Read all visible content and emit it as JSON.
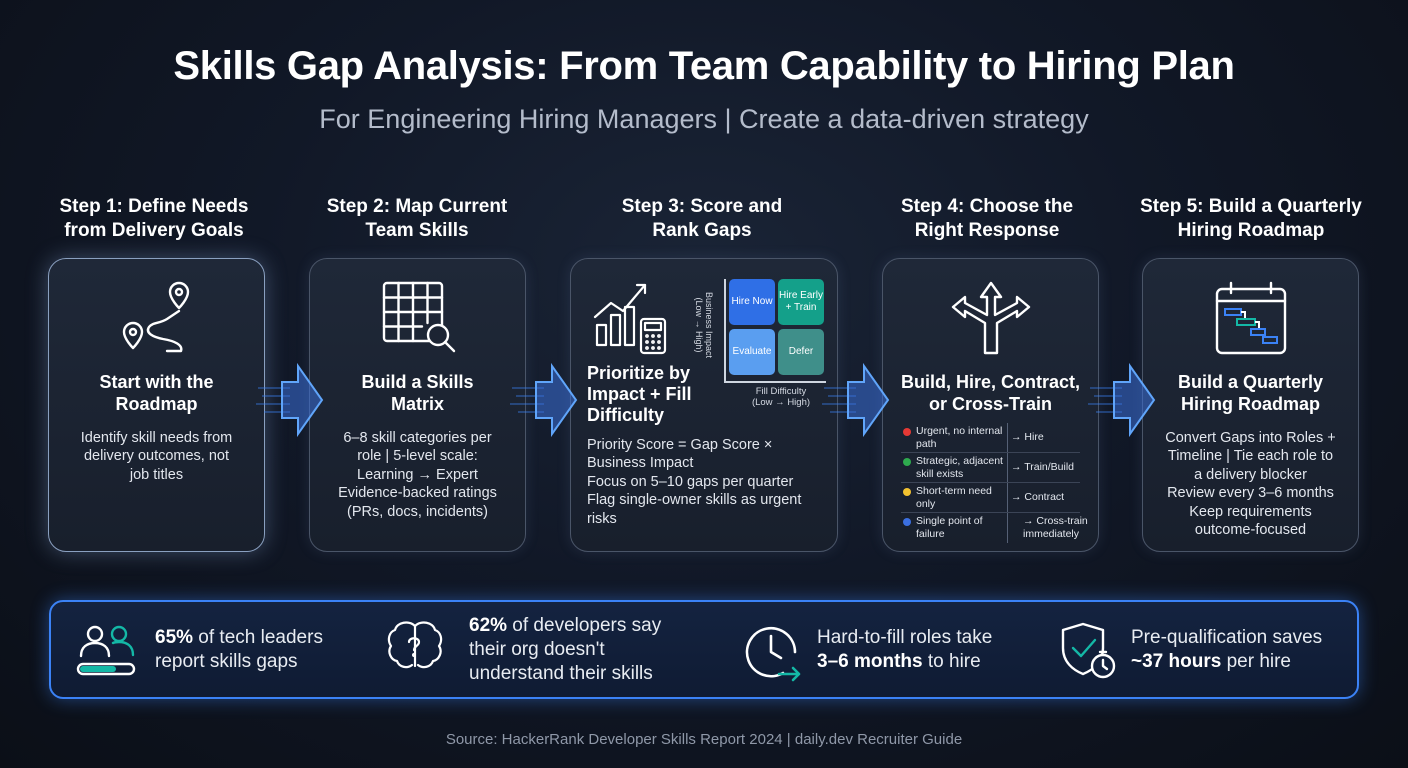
{
  "header": {
    "title": "Skills Gap Analysis: From Team Capability to Hiring Plan",
    "subtitle": "For Engineering Hiring Managers | Create a data-driven strategy"
  },
  "steps": [
    {
      "heading": [
        "Step 1: Define Needs",
        "from Delivery Goals"
      ],
      "title": [
        "Start with the",
        "Roadmap"
      ],
      "body": [
        "Identify skill needs from",
        "delivery outcomes, not",
        "job titles"
      ],
      "icon": "route-pins-icon"
    },
    {
      "heading": [
        "Step 2: Map Current",
        "Team Skills"
      ],
      "title": [
        "Build a Skills",
        "Matrix"
      ],
      "body": [
        "6–8 skill categories per",
        "role | 5-level scale:",
        "Learning → Expert",
        "Evidence-backed ratings",
        "(PRs, docs, incidents)"
      ],
      "icon": "grid-search-icon"
    },
    {
      "heading": [
        "Step 3: Score and",
        "Rank Gaps"
      ],
      "title": [
        "Prioritize by",
        "Impact + Fill",
        "Difficulty"
      ],
      "body": [
        "Priority Score = Gap Score ×",
        "Business Impact",
        "Focus on 5–10 gaps per quarter",
        "Flag single-owner skills as urgent",
        "risks"
      ],
      "icon": "chart-calculator-icon",
      "matrix": {
        "y_axis": [
          "Business Impact",
          "(Low → High)"
        ],
        "x_axis": [
          "Fill Difficulty",
          "(Low → High)"
        ],
        "cells": [
          {
            "label": "Hire Now",
            "color": "#2f6fe6"
          },
          {
            "label": "Hire Early + Train",
            "color": "#14a08a"
          },
          {
            "label": "Evaluate",
            "color": "#5a9ef0"
          },
          {
            "label": "Defer",
            "color": "#3f8f8a"
          }
        ]
      }
    },
    {
      "heading": [
        "Step 4: Choose the",
        "Right Response"
      ],
      "title": [
        "Build, Hire, Contract,",
        "or Cross-Train"
      ],
      "icon": "split-arrows-icon",
      "responses": [
        {
          "condition": [
            "Urgent, no internal",
            "path"
          ],
          "action": [
            "→ Hire"
          ],
          "color": "#e53935"
        },
        {
          "condition": [
            "Strategic, adjacent",
            "skill exists"
          ],
          "action": [
            "→ Train/Build"
          ],
          "color": "#2eaa4e"
        },
        {
          "condition": [
            "Short-term need",
            "only"
          ],
          "action": [
            "→ Contract"
          ],
          "color": "#f2c230"
        },
        {
          "condition": [
            "Single point of",
            "failure"
          ],
          "action": [
            "→ Cross-train",
            "immediately"
          ],
          "color": "#3b6fe0"
        }
      ]
    },
    {
      "heading": [
        "Step 5: Build a Quarterly",
        "Hiring Roadmap"
      ],
      "title": [
        "Build a Quarterly",
        "Hiring Roadmap"
      ],
      "body": [
        "Convert Gaps into Roles +",
        "Timeline | Tie each role to",
        "a delivery blocker",
        "Review every 3–6 months",
        "Keep requirements",
        "outcome-focused"
      ],
      "icon": "calendar-gantt-icon"
    }
  ],
  "stats": [
    {
      "strong": "65%",
      "text": [
        " of tech leaders",
        "report skills gaps"
      ],
      "icon": "people-progress-icon"
    },
    {
      "strong": "62%",
      "text": [
        " of developers say",
        "their org doesn't",
        "understand their skills"
      ],
      "icon": "brain-question-icon"
    },
    {
      "strong": "3–6 months",
      "pre": "Hard-to-fill roles take",
      "post": " to hire",
      "icon": "clock-arrow-icon"
    },
    {
      "strong": "~37 hours",
      "pre": "Pre-qualification saves",
      "post": " per hire",
      "icon": "shield-check-timer-icon"
    }
  ],
  "source": "Source: HackerRank Developer Skills Report 2024 | daily.dev Recruiter Guide",
  "colors": {
    "accent": "#3b82f6",
    "teal": "#14b8a6"
  }
}
